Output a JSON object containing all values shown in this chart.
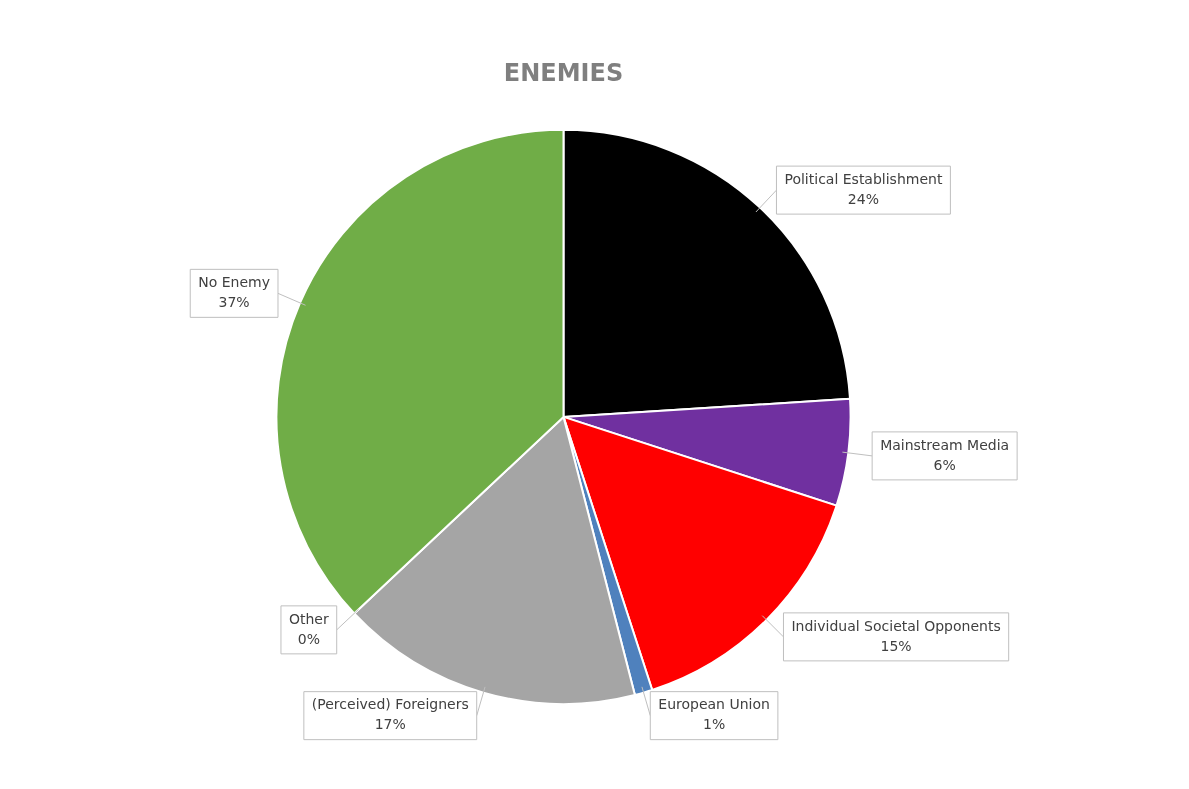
{
  "chart_data": {
    "type": "pie",
    "title": "ENEMIES",
    "categories": [
      "Political Establishment",
      "Mainstream Media",
      "Individual Societal Opponents",
      "European Union",
      "(Perceived) Foreigners",
      "Other",
      "No Enemy"
    ],
    "values": [
      24,
      6,
      15,
      1,
      17,
      0,
      37
    ],
    "value_labels": [
      "24%",
      "6%",
      "15%",
      "1%",
      "17%",
      "0%",
      "37%"
    ],
    "colors": [
      "#000000",
      "#7030a0",
      "#ff0000",
      "#4f81bd",
      "#a5a5a5",
      "#9c9c48",
      "#70ad47"
    ]
  }
}
